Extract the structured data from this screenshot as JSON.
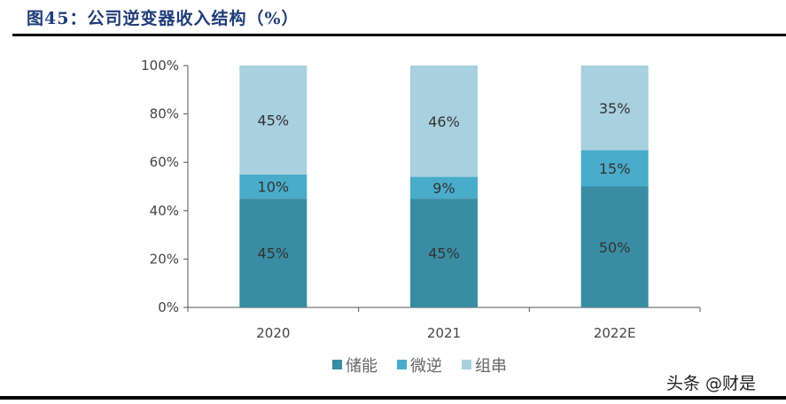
{
  "title": "图45：公司逆变器收入结构（%）",
  "watermark": "头条 @财是",
  "chart_data": {
    "type": "bar",
    "stacked": true,
    "categories": [
      "2020",
      "2021",
      "2022E"
    ],
    "series": [
      {
        "name": "储能",
        "values": [
          45,
          45,
          50
        ],
        "labels": [
          "45%",
          "45%",
          "50%"
        ],
        "color": "#3a8ca3"
      },
      {
        "name": "微逆",
        "values": [
          10,
          9,
          15
        ],
        "labels": [
          "10%",
          "9%",
          "15%"
        ],
        "color": "#4aaccb"
      },
      {
        "name": "组串",
        "values": [
          45,
          46,
          35
        ],
        "labels": [
          "45%",
          "46%",
          "35%"
        ],
        "color": "#a9d0de"
      }
    ],
    "ylim": [
      0,
      100
    ],
    "yticks": [
      "0%",
      "20%",
      "40%",
      "60%",
      "80%",
      "100%"
    ],
    "grid": false,
    "legend": "bottom"
  }
}
